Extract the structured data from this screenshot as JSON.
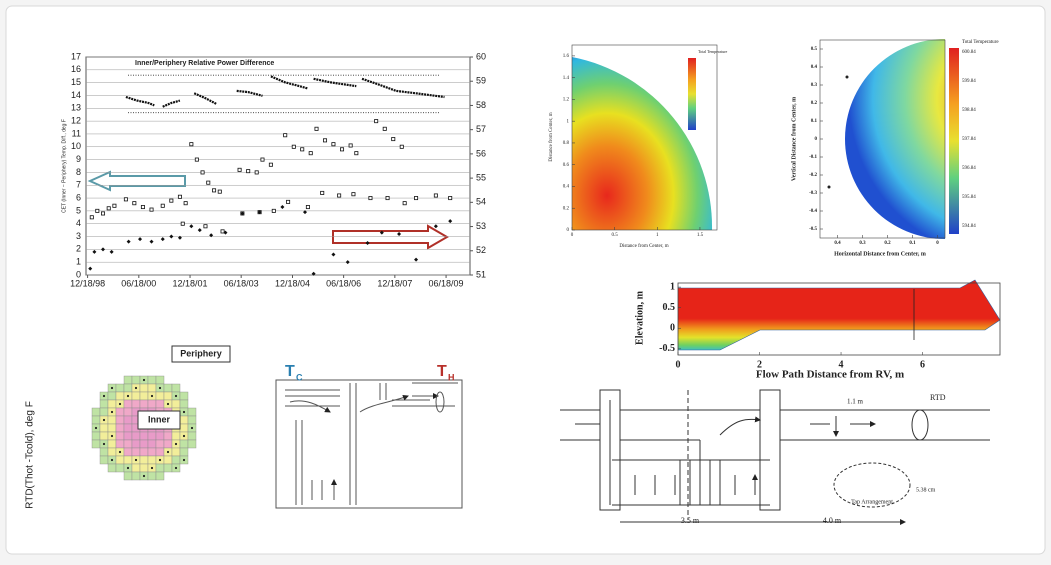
{
  "chart_data": {
    "type": "scatter",
    "title": "Inner/Periphery Relative Power Difference",
    "ylabel": "CET (Inner − Periphery) Temp. Diff., deg F",
    "xlim": [
      "1998-12-01",
      "2010-03-01"
    ],
    "xticks": [
      {
        "value": "1998-12-18",
        "label": "12/18/98"
      },
      {
        "value": "2000-06-18",
        "label": "06/18/00"
      },
      {
        "value": "2001-12-18",
        "label": "12/18/01"
      },
      {
        "value": "2003-06-18",
        "label": "06/18/03"
      },
      {
        "value": "2004-12-18",
        "label": "12/18/04"
      },
      {
        "value": "2006-06-18",
        "label": "06/18/06"
      },
      {
        "value": "2007-12-18",
        "label": "12/18/07"
      },
      {
        "value": "2009-06-18",
        "label": "06/18/09"
      }
    ],
    "ylim": [
      0,
      17
    ],
    "yticks": [
      0,
      1,
      2,
      3,
      4,
      5,
      6,
      7,
      8,
      9,
      10,
      11,
      12,
      13,
      14,
      15,
      16,
      17
    ],
    "y2lim": [
      51,
      60
    ],
    "y2ticks": [
      51,
      52,
      53,
      54,
      55,
      56,
      57,
      58,
      59,
      60
    ],
    "grid": true,
    "hlines": [
      {
        "value": 59.25,
        "axis": "y2"
      },
      {
        "value": 57.7,
        "axis": "y2"
      }
    ],
    "series": [
      {
        "type": "scatter",
        "marker": "square",
        "color": "#111111",
        "x": [
          "1999-02-01",
          "1999-04-01",
          "1999-06-01",
          "1999-08-01",
          "1999-10-01",
          "2000-02-01",
          "2000-05-01",
          "2000-08-01",
          "2000-11-01",
          "2001-03-01",
          "2001-06-01",
          "2001-09-01",
          "2001-10-01",
          "2001-11-01",
          "2002-01-01",
          "2002-03-01",
          "2002-05-01",
          "2002-06-01",
          "2002-07-01",
          "2002-09-01",
          "2002-11-01",
          "2002-12-01",
          "2003-06-01",
          "2003-07-01",
          "2003-09-01",
          "2003-12-01",
          "2004-01-01",
          "2004-02-01",
          "2004-05-01",
          "2004-06-01",
          "2004-10-01",
          "2004-11-01",
          "2005-01-01",
          "2005-04-01",
          "2005-06-01",
          "2005-07-01",
          "2005-09-01",
          "2005-11-01",
          "2005-12-01",
          "2006-03-01",
          "2006-05-01",
          "2006-06-01",
          "2006-09-01",
          "2006-10-01",
          "2006-11-01",
          "2007-04-01",
          "2007-06-01",
          "2007-09-01",
          "2007-10-01",
          "2007-12-01",
          "2008-03-01",
          "2008-04-01",
          "2008-08-01",
          "2009-03-01",
          "2009-08-01"
        ],
        "values": [
          4.5,
          5.0,
          4.8,
          5.2,
          5.4,
          5.9,
          5.6,
          5.3,
          5.1,
          5.4,
          5.8,
          6.1,
          4.0,
          5.6,
          10.2,
          9.0,
          8.0,
          3.8,
          7.2,
          6.6,
          6.5,
          3.4,
          8.2,
          4.8,
          8.1,
          8.0,
          4.9,
          9.0,
          8.6,
          5.0,
          10.9,
          5.7,
          10.0,
          9.8,
          5.3,
          9.5,
          11.4,
          6.4,
          10.5,
          10.2,
          6.2,
          9.8,
          10.1,
          6.3,
          9.5,
          6.0,
          12.0,
          11.4,
          6.0,
          10.6,
          10.0,
          5.6,
          6.0,
          6.2,
          6.0
        ]
      },
      {
        "type": "scatter",
        "marker": "diamond",
        "color": "#111111",
        "x": [
          "1999-01-15",
          "1999-03-01",
          "1999-06-01",
          "1999-09-01",
          "2000-03-01",
          "2000-07-01",
          "2000-11-01",
          "2001-03-01",
          "2001-06-01",
          "2001-09-01",
          "2002-01-01",
          "2002-04-01",
          "2002-08-01",
          "2003-01-01",
          "2003-07-01",
          "2004-01-01",
          "2004-09-01",
          "2005-05-01",
          "2005-08-01",
          "2006-03-01",
          "2006-08-01",
          "2007-03-01",
          "2007-08-01",
          "2008-02-01",
          "2008-08-01",
          "2009-03-01",
          "2009-08-01"
        ],
        "values": [
          0.5,
          1.8,
          2.0,
          1.8,
          2.6,
          2.8,
          2.6,
          2.8,
          3.0,
          2.9,
          3.8,
          3.5,
          3.1,
          3.3,
          4.8,
          4.9,
          5.3,
          4.9,
          0.1,
          1.6,
          1.0,
          2.5,
          3.3,
          3.2,
          1.2,
          3.8,
          4.2
        ]
      },
      {
        "type": "line",
        "axis": "y2",
        "color": "#111111",
        "x": [
          "2000-02-01",
          "2000-06-01",
          "2000-10-01",
          "2000-12-01",
          null,
          "2001-03-01",
          "2001-06-01",
          "2001-09-01",
          null,
          "2002-02-01",
          "2002-06-01",
          "2002-10-01",
          null,
          "2003-05-01",
          "2003-09-01",
          "2004-02-01",
          null,
          "2004-05-01",
          "2004-10-01",
          "2005-03-01",
          "2005-06-01",
          null,
          "2005-08-01",
          "2006-02-01",
          "2006-08-01",
          "2006-11-01",
          null,
          "2007-01-01",
          "2007-06-01",
          "2008-01-01",
          "2008-08-01",
          "2009-06-01"
        ],
        "values": [
          58.35,
          58.2,
          58.1,
          58.0,
          null,
          57.95,
          58.1,
          58.2,
          null,
          58.5,
          58.3,
          58.05,
          null,
          58.6,
          58.55,
          58.4,
          null,
          59.2,
          58.95,
          58.8,
          58.7,
          null,
          59.1,
          58.95,
          58.85,
          58.8,
          null,
          59.1,
          58.9,
          58.6,
          58.5,
          58.35
        ]
      }
    ]
  },
  "y2label": "RTD(Thot -Tcold), deg F",
  "quarter_map": {
    "xlabel": "Distance from Center, m",
    "ylabel": "Distance from Center, m",
    "legend_title": "Total Temperature",
    "xlim": [
      0,
      1.7
    ],
    "xticks": [
      0,
      0.5,
      1,
      1.5
    ],
    "ylim": [
      0,
      1.7
    ],
    "yticks": [
      0,
      0.2,
      0.4,
      0.6,
      0.8,
      1,
      1.2,
      1.4,
      1.6
    ]
  },
  "disk_map": {
    "xlabel": "Horizontal Distance from Center, m",
    "ylabel": "Vertical Distance from Center, m",
    "legend_title": "Total Temperature",
    "legend_labels": [
      "600.84",
      "599.84",
      "598.84",
      "597.84",
      "596.84",
      "595.84",
      "594.84"
    ],
    "xlim": [
      0.47,
      -0.03
    ],
    "xticks": [
      0.4,
      0.3,
      0.2,
      0.1,
      0
    ],
    "ylim": [
      -0.55,
      0.55
    ],
    "yticks": [
      0.5,
      0.4,
      0.3,
      0.2,
      0.1,
      0,
      -0.1,
      -0.2,
      -0.3,
      -0.4,
      -0.5
    ]
  },
  "flow_map": {
    "xlabel": "Flow Path Distance from RV, m",
    "ylabel": "Elevation, m",
    "xlim": [
      0,
      7.9
    ],
    "xticks": [
      0,
      2,
      4,
      6
    ],
    "ylim": [
      -0.65,
      1.1
    ],
    "yticks": [
      -0.5,
      0,
      0.5,
      1
    ]
  },
  "core_map": {
    "outer_label": "Periphery",
    "inner_label": "Inner"
  },
  "plenum_diagram": {
    "cold_label": "T",
    "cold_sub": "C",
    "hot_label": "T",
    "hot_sub": "H"
  },
  "rv_diagram": {
    "gap_label": "1.1 m",
    "sensor_label": "RTD",
    "left_span": "3.5 m",
    "right_span": "4.0 m",
    "tap_label": "Tap Arrangement",
    "tap_size": "5.38 cm"
  }
}
